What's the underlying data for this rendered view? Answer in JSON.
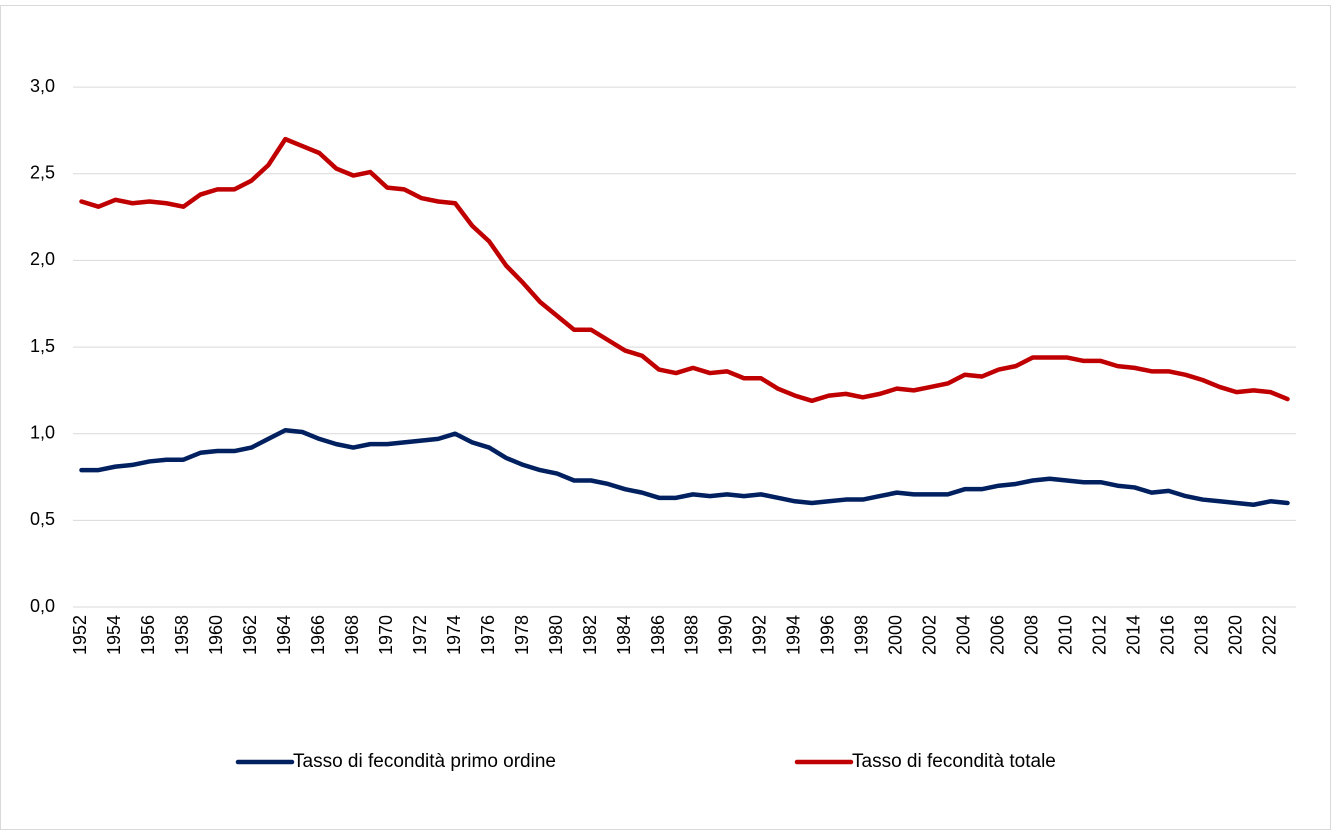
{
  "chart_data": {
    "type": "line",
    "categories": [
      "1952",
      null,
      "1954",
      null,
      "1956",
      null,
      "1958",
      null,
      "1960",
      null,
      "1962",
      null,
      "1964",
      null,
      "1966",
      null,
      "1968",
      null,
      "1970",
      null,
      "1972",
      null,
      "1974",
      null,
      "1976",
      null,
      "1978",
      null,
      "1980",
      null,
      "1982",
      null,
      "1984",
      null,
      "1986",
      null,
      "1988",
      null,
      "1990",
      null,
      "1992",
      null,
      "1994",
      null,
      "1996",
      null,
      "1998",
      null,
      "2000",
      null,
      "2002",
      null,
      "2004",
      null,
      "2006",
      null,
      "2008",
      null,
      "2010",
      null,
      "2012",
      null,
      "2014",
      null,
      "2016",
      null,
      "2018",
      null,
      "2020",
      null,
      "2022",
      null
    ],
    "series": [
      {
        "name": "Tasso di fecondità primo ordine",
        "color": "#002060",
        "values": [
          0.79,
          0.79,
          0.81,
          0.82,
          0.84,
          0.85,
          0.85,
          0.89,
          0.9,
          0.9,
          0.92,
          0.97,
          1.02,
          1.01,
          0.97,
          0.94,
          0.92,
          0.94,
          0.94,
          0.95,
          0.96,
          0.97,
          1.0,
          0.95,
          0.92,
          0.86,
          0.82,
          0.79,
          0.77,
          0.73,
          0.73,
          0.71,
          0.68,
          0.66,
          0.63,
          0.63,
          0.65,
          0.64,
          0.65,
          0.64,
          0.65,
          0.63,
          0.61,
          0.6,
          0.61,
          0.62,
          0.62,
          0.64,
          0.66,
          0.65,
          0.65,
          0.65,
          0.68,
          0.68,
          0.7,
          0.71,
          0.73,
          0.74,
          0.73,
          0.72,
          0.72,
          0.7,
          0.69,
          0.66,
          0.67,
          0.64,
          0.62,
          0.61,
          0.6,
          0.59,
          0.61,
          0.6
        ]
      },
      {
        "name": "Tasso di fecondità totale",
        "color": "#c00000",
        "values": [
          2.34,
          2.31,
          2.35,
          2.33,
          2.34,
          2.33,
          2.31,
          2.38,
          2.41,
          2.41,
          2.46,
          2.55,
          2.7,
          2.66,
          2.62,
          2.53,
          2.49,
          2.51,
          2.42,
          2.41,
          2.36,
          2.34,
          2.33,
          2.2,
          2.11,
          1.97,
          1.87,
          1.76,
          1.68,
          1.6,
          1.6,
          1.54,
          1.48,
          1.45,
          1.37,
          1.35,
          1.38,
          1.35,
          1.36,
          1.32,
          1.32,
          1.26,
          1.22,
          1.19,
          1.22,
          1.23,
          1.21,
          1.23,
          1.26,
          1.25,
          1.27,
          1.29,
          1.34,
          1.33,
          1.37,
          1.39,
          1.44,
          1.44,
          1.44,
          1.42,
          1.42,
          1.39,
          1.38,
          1.36,
          1.36,
          1.34,
          1.31,
          1.27,
          1.24,
          1.25,
          1.24,
          1.2
        ]
      }
    ],
    "ylim": [
      0,
      3.5
    ],
    "yticks": [
      {
        "value": 0,
        "label": "0,0"
      },
      {
        "value": 0.5,
        "label": "0,5"
      },
      {
        "value": 1,
        "label": "1,0"
      },
      {
        "value": 1.5,
        "label": "1,5"
      },
      {
        "value": 2,
        "label": "2,0"
      },
      {
        "value": 2.5,
        "label": "2,5"
      },
      {
        "value": 3,
        "label": "3,0"
      }
    ],
    "grid": true,
    "legend": "bottom"
  }
}
